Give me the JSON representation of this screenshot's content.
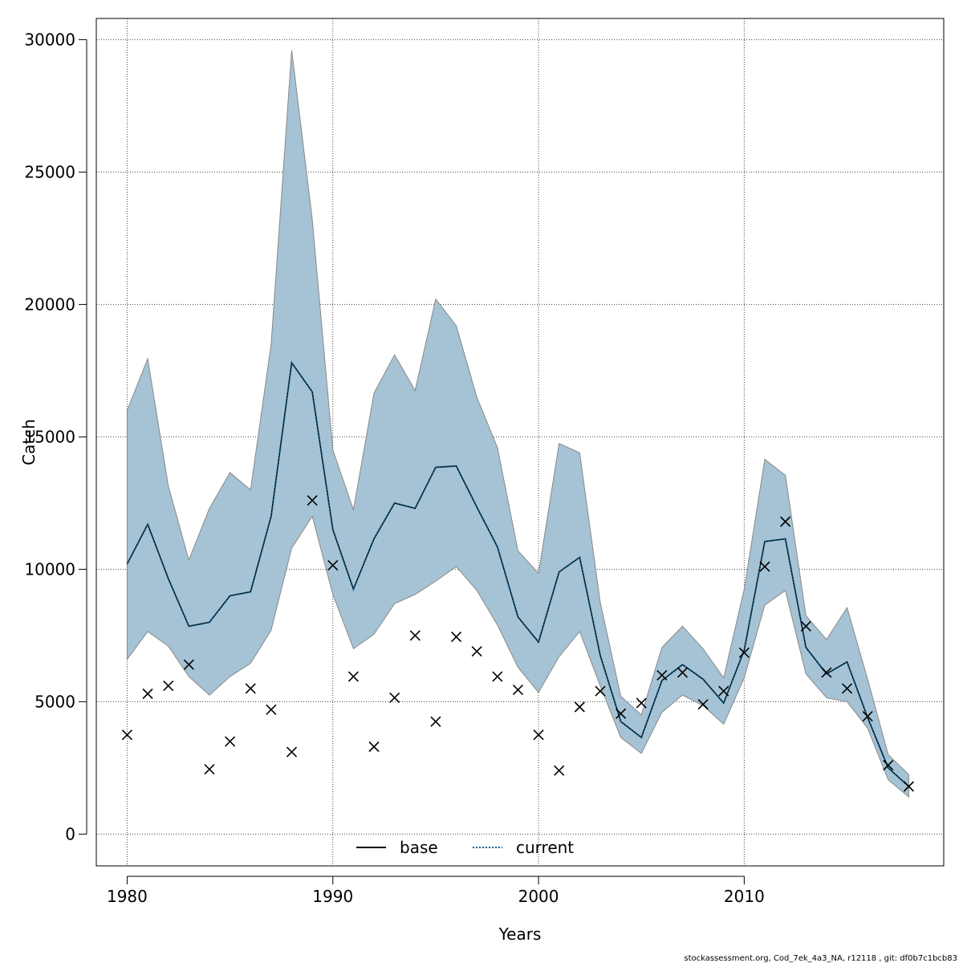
{
  "chart_data": {
    "type": "line",
    "xlabel": "Years",
    "ylabel": "Catch",
    "xlim": [
      1978.5,
      2019.7
    ],
    "ylim": [
      -1200,
      30800
    ],
    "x_ticks": [
      1980,
      1990,
      2000,
      2010
    ],
    "y_ticks": [
      0,
      5000,
      10000,
      15000,
      20000,
      25000,
      30000
    ],
    "grid": true,
    "legend_position": "bottom-center",
    "x": [
      1980,
      1981,
      1982,
      1983,
      1984,
      1985,
      1986,
      1987,
      1988,
      1989,
      1990,
      1991,
      1992,
      1993,
      1994,
      1995,
      1996,
      1997,
      1998,
      1999,
      2000,
      2001,
      2002,
      2003,
      2004,
      2005,
      2006,
      2007,
      2008,
      2009,
      2010,
      2011,
      2012,
      2013,
      2014,
      2015,
      2016,
      2017,
      2018
    ],
    "band": {
      "upper": [
        16000,
        17950,
        13150,
        10350,
        12300,
        13650,
        13000,
        18500,
        29600,
        23200,
        14500,
        12250,
        16650,
        18100,
        16750,
        20200,
        19200,
        16500,
        14600,
        10700,
        9850,
        14750,
        14400,
        8750,
        5200,
        4500,
        7050,
        7850,
        7000,
        5900,
        9250,
        14150,
        13550,
        8250,
        7350,
        8550,
        5850,
        3000,
        2250
      ],
      "lower": [
        6600,
        7650,
        7100,
        5950,
        5250,
        5950,
        6450,
        7700,
        10800,
        12000,
        9050,
        7000,
        7550,
        8700,
        9050,
        9550,
        10100,
        9200,
        7900,
        6300,
        5350,
        6700,
        7650,
        5600,
        3650,
        3050,
        4600,
        5250,
        4850,
        4150,
        5900,
        8650,
        9200,
        6050,
        5150,
        5000,
        4000,
        2050,
        1400
      ],
      "fill_color": "#a5c3d4",
      "edge_color": "#888888"
    },
    "series": [
      {
        "name": "base",
        "color": "#000000",
        "style": "solid",
        "values": [
          10200,
          11700,
          9650,
          7850,
          8000,
          9000,
          9150,
          12000,
          17800,
          16700,
          11500,
          9250,
          11150,
          12500,
          12300,
          13850,
          13900,
          12350,
          10850,
          8200,
          7250,
          9900,
          10450,
          6750,
          4250,
          3650,
          5800,
          6400,
          5850,
          4950,
          6950,
          11050,
          11150,
          7050,
          6050,
          6500,
          4400,
          2500,
          1800
        ]
      },
      {
        "name": "current",
        "color": "#0a5a8a",
        "style": "dotted",
        "values": [
          10200,
          11700,
          9650,
          7850,
          8000,
          9000,
          9150,
          12000,
          17800,
          16700,
          11500,
          9250,
          11150,
          12500,
          12300,
          13850,
          13900,
          12350,
          10850,
          8200,
          7250,
          9900,
          10450,
          6750,
          4250,
          3650,
          5800,
          6400,
          5850,
          4950,
          6950,
          11050,
          11150,
          7050,
          6050,
          6500,
          4400,
          2500,
          1800
        ]
      }
    ],
    "observations": {
      "marker": "x",
      "values": [
        3750,
        5300,
        5600,
        6400,
        2450,
        3500,
        5500,
        4700,
        3100,
        12600,
        10150,
        5950,
        3300,
        5150,
        7500,
        4250,
        7450,
        6900,
        5950,
        5450,
        3750,
        2400,
        4800,
        5400,
        4550,
        4950,
        6000,
        6100,
        4900,
        5400,
        6850,
        10100,
        11800,
        7850,
        6100,
        5500,
        4450,
        2600,
        1800
      ]
    }
  },
  "footer": {
    "text": "stockassessment.org, Cod_7ek_4a3_NA, r12118 , git: df0b7c1bcb83"
  }
}
